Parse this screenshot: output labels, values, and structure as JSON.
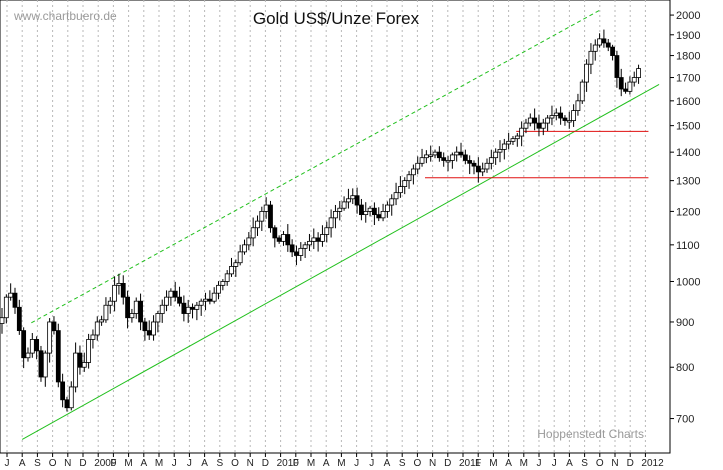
{
  "chart_data": {
    "type": "candlestick",
    "title": "Gold US$/Unze Forex",
    "watermark": "www.chartbuero.de",
    "credit": "Hoppenstedt Charts",
    "y_scale": "log",
    "ylim": [
      640,
      2080
    ],
    "y_ticks": [
      700,
      800,
      900,
      1000,
      1100,
      1200,
      1300,
      1400,
      1500,
      1600,
      1700,
      1800,
      1900,
      2000
    ],
    "x_ticks": [
      "J",
      "A",
      "S",
      "O",
      "N",
      "D",
      "2009",
      "F",
      "M",
      "A",
      "M",
      "J",
      "J",
      "A",
      "S",
      "O",
      "N",
      "D",
      "2010",
      "F",
      "M",
      "A",
      "M",
      "J",
      "J",
      "A",
      "S",
      "O",
      "N",
      "D",
      "2011",
      "F",
      "M",
      "A",
      "M",
      "J",
      "J",
      "A",
      "S",
      "O",
      "N",
      "D",
      "2012"
    ],
    "grid": true,
    "colors": {
      "candle": "#000000",
      "channel": "#22c01e",
      "support": "#e01010"
    },
    "price_series": [
      910,
      960,
      970,
      935,
      880,
      820,
      830,
      860,
      835,
      780,
      830,
      900,
      880,
      770,
      735,
      720,
      760,
      830,
      800,
      810,
      860,
      870,
      900,
      905,
      940,
      950,
      990,
      995,
      960,
      910,
      920,
      950,
      900,
      880,
      870,
      900,
      920,
      940,
      960,
      975,
      960,
      945,
      920,
      935,
      930,
      940,
      950,
      955,
      950,
      970,
      990,
      1000,
      1020,
      1040,
      1050,
      1080,
      1100,
      1120,
      1150,
      1170,
      1200,
      1220,
      1150,
      1120,
      1110,
      1130,
      1100,
      1080,
      1070,
      1090,
      1100,
      1110,
      1120,
      1110,
      1130,
      1150,
      1180,
      1200,
      1210,
      1230,
      1240,
      1250,
      1220,
      1190,
      1200,
      1210,
      1190,
      1180,
      1200,
      1220,
      1240,
      1260,
      1280,
      1300,
      1320,
      1340,
      1360,
      1380,
      1390,
      1390,
      1400,
      1380,
      1370,
      1370,
      1390,
      1400,
      1390,
      1370,
      1360,
      1350,
      1330,
      1340,
      1360,
      1380,
      1400,
      1410,
      1430,
      1440,
      1450,
      1460,
      1490,
      1510,
      1530,
      1510,
      1490,
      1510,
      1530,
      1540,
      1550,
      1530,
      1520,
      1520,
      1560,
      1600,
      1680,
      1760,
      1820,
      1850,
      1880,
      1860,
      1840,
      1800,
      1700,
      1650,
      1640,
      1680,
      1700,
      1740
    ],
    "support_levels": [
      {
        "value": 1310,
        "from_month": 27.5,
        "to_month": 42.2
      },
      {
        "value": 1478,
        "from_month": 33.5,
        "to_month": 42.2
      }
    ],
    "channel_lower": {
      "from": [
        1.0,
        663
      ],
      "to": [
        42.9,
        1670
      ]
    },
    "channel_upper": {
      "from": [
        1.6,
        898
      ],
      "to": [
        39.1,
        2030
      ]
    }
  }
}
